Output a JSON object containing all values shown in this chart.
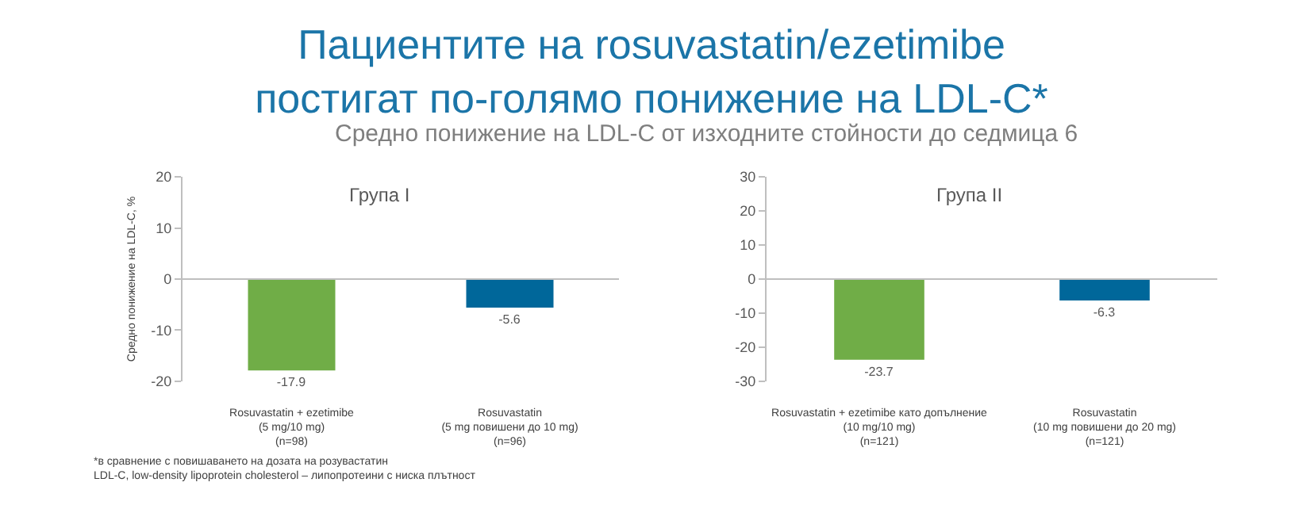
{
  "chart_data": [
    {
      "type": "bar",
      "title": "Пациентите на rosuvastatin/ezetimibe\nпостигат по-голямо понижение на LDL-C*",
      "subtitle": "Средно понижение на LDL-C от изходните стойности до седмица 6",
      "ylabel": "Средно понижение на LDL-C, %",
      "categories": [
        "Rosuvastatin + ezetimibe\n(5 mg/10 mg)\n(n=98)",
        "Rosuvastatin\n(5 mg повишени до 10 mg)\n(n=96)"
      ],
      "values": [
        -17.9,
        -5.6
      ],
      "colors": [
        "#70ad47",
        "#00679a"
      ],
      "data_labels": true,
      "ylim": [
        -20,
        20
      ],
      "yticks": [
        -20,
        -10,
        0,
        10,
        20
      ],
      "annotations": [
        "Група I",
        "*в сравнение с повишаването на дозата на розувастатин",
        "LDL-C, low-density lipoprotein cholesterol – липопротеини с ниска плътност"
      ]
    },
    {
      "type": "bar",
      "categories": [
        "Rosuvastatin + ezetimibe като допълнение\n(10 mg/10 mg)\n(n=121)",
        "Rosuvastatin\n(10 mg повишени до 20 mg)\n(n=121)"
      ],
      "values": [
        -23.7,
        -6.3
      ],
      "colors": [
        "#70ad47",
        "#00679a"
      ],
      "data_labels": true,
      "ylim": [
        -30,
        30
      ],
      "yticks": [
        -30,
        -20,
        -10,
        0,
        10,
        20,
        30
      ],
      "annotations": [
        "Група II"
      ]
    }
  ]
}
